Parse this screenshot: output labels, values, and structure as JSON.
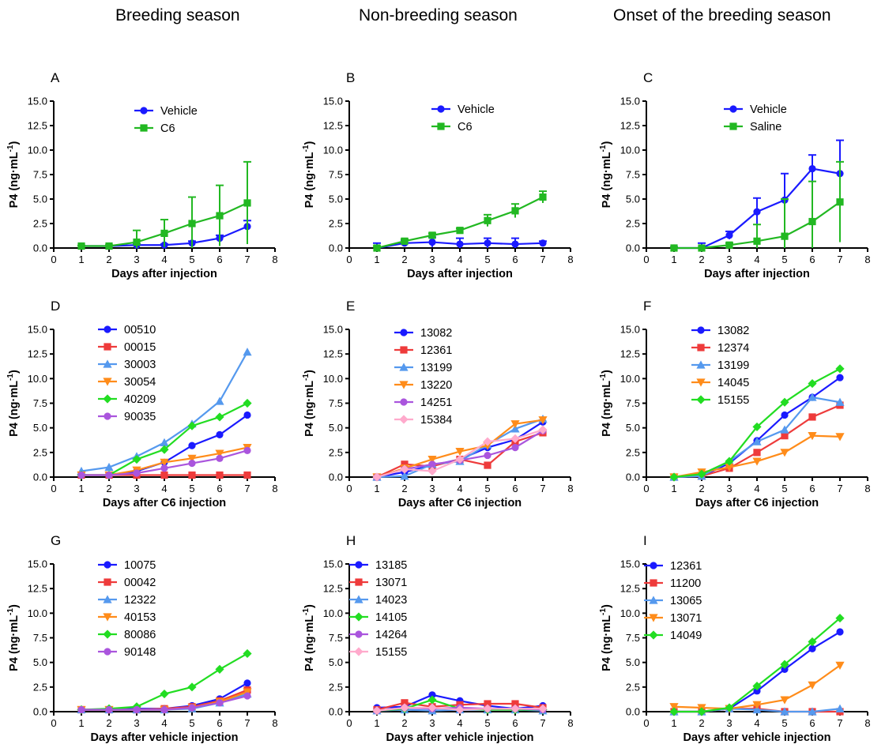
{
  "column_titles": [
    "Breeding season",
    "Non-breeding season",
    "Onset of the breeding season"
  ],
  "colors": {
    "blue": "#1a1aff",
    "red": "#ee3b3b",
    "lightblue": "#5599ee",
    "orange": "#ff8c1a",
    "green": "#22dd22",
    "purple": "#aa55dd",
    "pink": "#ffaacc",
    "green_dark": "#22b822"
  },
  "chart_data": [
    {
      "panel": "A",
      "type": "line",
      "xlabel": "Days after injection",
      "ylabel": "P4 (ng·mL-1)",
      "xlim": [
        0,
        8
      ],
      "ylim": [
        0,
        15
      ],
      "xticks": [
        "0",
        "1",
        "2",
        "3",
        "4",
        "5",
        "6",
        "7",
        "8"
      ],
      "yticks": [
        "0.0",
        "2.5",
        "5.0",
        "7.5",
        "10.0",
        "12.5",
        "15.0"
      ],
      "x": [
        1,
        2,
        3,
        4,
        5,
        6,
        7
      ],
      "series": [
        {
          "name": "Vehicle",
          "color": "blue",
          "marker": "circle",
          "values": [
            0.2,
            0.2,
            0.3,
            0.3,
            0.5,
            1.0,
            2.2
          ],
          "err": [
            0.05,
            0.05,
            0.1,
            0.1,
            0.2,
            0.3,
            0.6
          ],
          "errcap": [
            0,
            0,
            0,
            0,
            0,
            3.3,
            3.7
          ]
        },
        {
          "name": "C6",
          "color": "green_dark",
          "marker": "square",
          "values": [
            0.2,
            0.2,
            0.6,
            1.5,
            2.5,
            3.3,
            4.6
          ],
          "err": [
            0.05,
            0.1,
            1.2,
            1.4,
            2.7,
            3.1,
            4.2
          ]
        }
      ]
    },
    {
      "panel": "B",
      "type": "line",
      "xlabel": "Days after injection",
      "ylabel": "P4 (ng·mL-1)",
      "xlim": [
        0,
        8
      ],
      "ylim": [
        0,
        15
      ],
      "xticks": [
        "0",
        "1",
        "2",
        "3",
        "4",
        "5",
        "6",
        "7",
        "8"
      ],
      "yticks": [
        "0.0",
        "2.5",
        "5.0",
        "7.5",
        "10.0",
        "12.5",
        "15.0"
      ],
      "x": [
        1,
        2,
        3,
        4,
        5,
        6,
        7
      ],
      "series": [
        {
          "name": "Vehicle",
          "color": "blue",
          "marker": "circle",
          "values": [
            0.0,
            0.5,
            0.6,
            0.4,
            0.5,
            0.4,
            0.5
          ],
          "err": [
            0.5,
            0.3,
            0.5,
            0.6,
            0.5,
            0.6,
            0.2
          ]
        },
        {
          "name": "C6",
          "color": "green_dark",
          "marker": "square",
          "values": [
            0.0,
            0.7,
            1.3,
            1.8,
            2.8,
            3.8,
            5.2
          ],
          "err": [
            0.2,
            0.2,
            0.2,
            0.2,
            0.6,
            0.7,
            0.6
          ]
        }
      ]
    },
    {
      "panel": "C",
      "type": "line",
      "xlabel": "Days after injection",
      "ylabel": "P4 (ng·mL-1)",
      "xlim": [
        0,
        8
      ],
      "ylim": [
        0,
        15
      ],
      "xticks": [
        "0",
        "1",
        "2",
        "3",
        "4",
        "5",
        "6",
        "7",
        "8"
      ],
      "yticks": [
        "0.0",
        "2.5",
        "5.0",
        "7.5",
        "10.0",
        "12.5",
        "15.0"
      ],
      "x": [
        1,
        2,
        3,
        4,
        5,
        6,
        7
      ],
      "series": [
        {
          "name": "Vehicle",
          "color": "blue",
          "marker": "circle",
          "values": [
            0.0,
            0.0,
            1.3,
            3.7,
            4.9,
            8.1,
            7.6
          ],
          "err": [
            0.1,
            0.5,
            0.4,
            1.4,
            2.7,
            1.4,
            3.4
          ]
        },
        {
          "name": "Saline",
          "color": "green_dark",
          "marker": "square",
          "values": [
            0.0,
            0.0,
            0.3,
            0.7,
            1.2,
            2.7,
            4.7
          ],
          "err": [
            0.05,
            0.05,
            0.2,
            1.7,
            3.8,
            4.1,
            4.1
          ]
        }
      ]
    },
    {
      "panel": "D",
      "type": "line",
      "xlabel": "Days after C6 injection",
      "ylabel": "P4 (ng·mL-1)",
      "xlim": [
        0,
        8
      ],
      "ylim": [
        0,
        15
      ],
      "xticks": [
        "0",
        "1",
        "2",
        "3",
        "4",
        "5",
        "6",
        "7",
        "8"
      ],
      "yticks": [
        "0.0",
        "2.5",
        "5.0",
        "7.5",
        "10.0",
        "12.5",
        "15.0"
      ],
      "x": [
        1,
        2,
        3,
        4,
        5,
        6,
        7
      ],
      "series": [
        {
          "name": "00510",
          "color": "blue",
          "marker": "circle",
          "values": [
            0.2,
            0.2,
            0.6,
            1.5,
            3.2,
            4.3,
            6.3
          ]
        },
        {
          "name": "00015",
          "color": "red",
          "marker": "square",
          "values": [
            0.2,
            0.2,
            0.2,
            0.2,
            0.2,
            0.2,
            0.2
          ]
        },
        {
          "name": "30003",
          "color": "lightblue",
          "marker": "triangle-up",
          "values": [
            0.6,
            1.0,
            2.1,
            3.5,
            5.4,
            7.7,
            12.7
          ]
        },
        {
          "name": "30054",
          "color": "orange",
          "marker": "triangle-down",
          "values": [
            0.2,
            0.2,
            0.7,
            1.5,
            1.9,
            2.4,
            3.0
          ]
        },
        {
          "name": "40209",
          "color": "green",
          "marker": "diamond",
          "values": [
            0.2,
            0.2,
            1.8,
            2.8,
            5.2,
            6.1,
            7.5
          ]
        },
        {
          "name": "90035",
          "color": "purple",
          "marker": "circle",
          "values": [
            0.2,
            0.2,
            0.4,
            0.9,
            1.4,
            1.9,
            2.7
          ]
        }
      ]
    },
    {
      "panel": "E",
      "type": "line",
      "xlabel": "Days after C6 injection",
      "ylabel": "P4 (ng·mL-1)",
      "xlim": [
        0,
        8
      ],
      "ylim": [
        0,
        15
      ],
      "xticks": [
        "0",
        "1",
        "2",
        "3",
        "4",
        "5",
        "6",
        "7",
        "8"
      ],
      "yticks": [
        "0.0",
        "2.5",
        "5.0",
        "7.5",
        "10.0",
        "12.5",
        "15.0"
      ],
      "x": [
        1,
        2,
        3,
        4,
        5,
        6,
        7
      ],
      "series": [
        {
          "name": "13082",
          "color": "blue",
          "marker": "circle",
          "values": [
            0.0,
            0.5,
            1.2,
            1.8,
            3.0,
            3.8,
            5.6
          ]
        },
        {
          "name": "12361",
          "color": "red",
          "marker": "square",
          "values": [
            0.0,
            1.3,
            1.1,
            1.8,
            1.2,
            3.6,
            4.5
          ]
        },
        {
          "name": "13199",
          "color": "lightblue",
          "marker": "triangle-up",
          "values": [
            0.0,
            0.1,
            1.3,
            1.6,
            3.3,
            4.9,
            5.9
          ]
        },
        {
          "name": "13220",
          "color": "orange",
          "marker": "triangle-down",
          "values": [
            0.0,
            0.9,
            1.8,
            2.6,
            3.2,
            5.4,
            5.8
          ]
        },
        {
          "name": "14251",
          "color": "purple",
          "marker": "circle",
          "values": [
            0.0,
            0.8,
            1.3,
            1.7,
            2.2,
            3.0,
            4.7
          ]
        },
        {
          "name": "15384",
          "color": "pink",
          "marker": "diamond",
          "values": [
            0.0,
            0.8,
            0.6,
            1.8,
            3.6,
            3.9,
            4.8
          ]
        }
      ]
    },
    {
      "panel": "F",
      "type": "line",
      "xlabel": "Days after C6 injection",
      "ylabel": "P4 (ng·mL-1)",
      "xlim": [
        0,
        8
      ],
      "ylim": [
        0,
        15
      ],
      "xticks": [
        "0",
        "1",
        "2",
        "3",
        "4",
        "5",
        "6",
        "7",
        "8"
      ],
      "yticks": [
        "0.0",
        "2.5",
        "5.0",
        "7.5",
        "10.0",
        "12.5",
        "15.0"
      ],
      "x": [
        1,
        2,
        3,
        4,
        5,
        6,
        7
      ],
      "series": [
        {
          "name": "13082",
          "color": "blue",
          "marker": "circle",
          "values": [
            0.0,
            0.1,
            1.4,
            3.7,
            6.3,
            8.1,
            10.1
          ]
        },
        {
          "name": "12374",
          "color": "red",
          "marker": "square",
          "values": [
            0.0,
            0.1,
            0.9,
            2.5,
            4.2,
            6.1,
            7.3
          ]
        },
        {
          "name": "13199",
          "color": "lightblue",
          "marker": "triangle-up",
          "values": [
            0.0,
            0.1,
            1.6,
            3.6,
            4.8,
            8.1,
            7.6
          ]
        },
        {
          "name": "14045",
          "color": "orange",
          "marker": "triangle-down",
          "values": [
            0.0,
            0.5,
            1.0,
            1.6,
            2.5,
            4.2,
            4.1
          ]
        },
        {
          "name": "15155",
          "color": "green",
          "marker": "diamond",
          "values": [
            0.0,
            0.3,
            1.6,
            5.1,
            7.6,
            9.5,
            11.0
          ]
        }
      ]
    },
    {
      "panel": "G",
      "type": "line",
      "xlabel": "Days after vehicle injection",
      "ylabel": "P4 (ng·mL-1)",
      "xlim": [
        0,
        8
      ],
      "ylim": [
        0,
        15
      ],
      "xticks": [
        "0",
        "1",
        "2",
        "3",
        "4",
        "5",
        "6",
        "7",
        "8"
      ],
      "yticks": [
        "0.0",
        "2.5",
        "5.0",
        "7.5",
        "10.0",
        "12.5",
        "15.0"
      ],
      "x": [
        1,
        2,
        3,
        4,
        5,
        6,
        7
      ],
      "series": [
        {
          "name": "10075",
          "color": "blue",
          "marker": "circle",
          "values": [
            0.2,
            0.2,
            0.3,
            0.3,
            0.6,
            1.3,
            2.9
          ]
        },
        {
          "name": "00042",
          "color": "red",
          "marker": "square",
          "values": [
            0.2,
            0.2,
            0.2,
            0.3,
            0.5,
            1.1,
            2.2
          ]
        },
        {
          "name": "12322",
          "color": "lightblue",
          "marker": "triangle-up",
          "values": [
            0.2,
            0.2,
            0.2,
            0.2,
            0.3,
            0.9,
            1.8
          ]
        },
        {
          "name": "40153",
          "color": "orange",
          "marker": "triangle-down",
          "values": [
            0.2,
            0.2,
            0.2,
            0.2,
            0.4,
            1.0,
            2.0
          ]
        },
        {
          "name": "80086",
          "color": "green",
          "marker": "diamond",
          "values": [
            0.2,
            0.3,
            0.5,
            1.8,
            2.5,
            4.3,
            5.9
          ]
        },
        {
          "name": "90148",
          "color": "purple",
          "marker": "circle",
          "values": [
            0.2,
            0.2,
            0.2,
            0.2,
            0.4,
            0.9,
            1.6
          ]
        }
      ]
    },
    {
      "panel": "H",
      "type": "line",
      "xlabel": "Days after vehicle injection",
      "ylabel": "P4 (ng·mL-1)",
      "xlim": [
        0,
        8
      ],
      "ylim": [
        0,
        15
      ],
      "xticks": [
        "0",
        "1",
        "2",
        "3",
        "4",
        "5",
        "6",
        "7",
        "8"
      ],
      "yticks": [
        "0.0",
        "2.5",
        "5.0",
        "7.5",
        "10.0",
        "12.5",
        "15.0"
      ],
      "x": [
        1,
        2,
        3,
        4,
        5,
        6,
        7
      ],
      "series": [
        {
          "name": "13185",
          "color": "blue",
          "marker": "circle",
          "values": [
            0.4,
            0.5,
            1.7,
            1.1,
            0.6,
            0.3,
            0.6
          ]
        },
        {
          "name": "13071",
          "color": "red",
          "marker": "square",
          "values": [
            0.2,
            0.9,
            0.5,
            0.7,
            0.8,
            0.8,
            0.4
          ]
        },
        {
          "name": "14023",
          "color": "lightblue",
          "marker": "triangle-up",
          "values": [
            0.1,
            0.2,
            0.1,
            0.2,
            0.2,
            0.2,
            0.1
          ]
        },
        {
          "name": "14105",
          "color": "green",
          "marker": "diamond",
          "values": [
            0.1,
            0.3,
            1.2,
            0.3,
            0.2,
            0.2,
            0.2
          ]
        },
        {
          "name": "14264",
          "color": "purple",
          "marker": "circle",
          "values": [
            0.1,
            0.4,
            0.3,
            0.4,
            0.3,
            0.3,
            0.2
          ]
        },
        {
          "name": "15155",
          "color": "pink",
          "marker": "diamond",
          "values": [
            0.1,
            0.4,
            0.4,
            0.2,
            0.3,
            0.3,
            0.3
          ]
        }
      ]
    },
    {
      "panel": "I",
      "type": "line",
      "xlabel": "Days after vehicle injection",
      "ylabel": "P4 (ng·mL-1)",
      "xlim": [
        0,
        8
      ],
      "ylim": [
        0,
        15
      ],
      "xticks": [
        "0",
        "1",
        "2",
        "3",
        "4",
        "5",
        "6",
        "7",
        "8"
      ],
      "yticks": [
        "0.0",
        "2.5",
        "5.0",
        "7.5",
        "10.0",
        "12.5",
        "15.0"
      ],
      "x": [
        1,
        2,
        3,
        4,
        5,
        6,
        7
      ],
      "series": [
        {
          "name": "12361",
          "color": "blue",
          "marker": "circle",
          "values": [
            0.0,
            0.0,
            0.3,
            2.1,
            4.3,
            6.4,
            8.1
          ]
        },
        {
          "name": "11200",
          "color": "red",
          "marker": "square",
          "values": [
            0.0,
            0.0,
            0.3,
            0.3,
            0.0,
            0.0,
            0.0
          ]
        },
        {
          "name": "13065",
          "color": "lightblue",
          "marker": "triangle-up",
          "values": [
            0.0,
            0.0,
            0.3,
            0.2,
            0.0,
            0.0,
            0.3
          ]
        },
        {
          "name": "13071",
          "color": "orange",
          "marker": "triangle-down",
          "values": [
            0.5,
            0.4,
            0.3,
            0.7,
            1.2,
            2.7,
            4.7
          ]
        },
        {
          "name": "14049",
          "color": "green",
          "marker": "diamond",
          "values": [
            0.0,
            0.0,
            0.4,
            2.6,
            4.8,
            7.1,
            9.5
          ]
        }
      ]
    }
  ]
}
